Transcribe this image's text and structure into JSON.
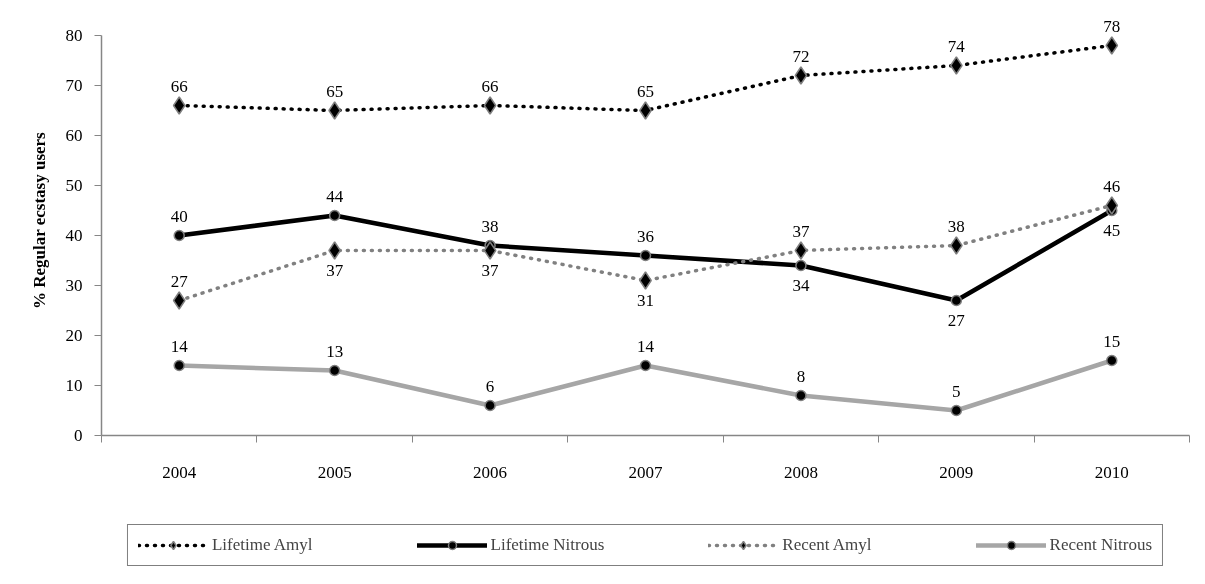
{
  "chart_data": {
    "type": "line",
    "ylabel": "% Regular ecstasy users",
    "categories": [
      "2004",
      "2005",
      "2006",
      "2007",
      "2008",
      "2009",
      "2010"
    ],
    "ylim": [
      0,
      80
    ],
    "yticks": [
      0,
      10,
      20,
      30,
      40,
      50,
      60,
      70,
      80
    ],
    "grid": false,
    "legend": "bottom",
    "data_labels": true,
    "series": [
      {
        "name": "Lifetime Amyl",
        "color": "#000000",
        "line_style": "dotted",
        "marker": "diamond",
        "colors": [
          "#000000",
          "#000000",
          "#000000",
          "#000000",
          "#000000",
          "#000000",
          "#000000"
        ],
        "values": [
          66,
          65,
          66,
          65,
          72,
          74,
          78
        ]
      },
      {
        "name": "Lifetime Nitrous",
        "color": "#000000",
        "line_style": "solid",
        "marker": "circle",
        "colors": [
          "#000000",
          "#000000",
          "#000000",
          "#000000",
          "#000000",
          "#000000",
          "#000000"
        ],
        "values": [
          40,
          44,
          38,
          36,
          34,
          27,
          45
        ]
      },
      {
        "name": "Recent Amyl",
        "color": "#808080",
        "line_style": "dotted",
        "marker": "diamond",
        "colors": [
          "#000000",
          "#000000",
          "#000000",
          "#000000",
          "#000000",
          "#000000",
          "#000000"
        ],
        "values": [
          27,
          37,
          37,
          31,
          37,
          38,
          46
        ]
      },
      {
        "name": "Recent Nitrous",
        "color": "#a6a6a6",
        "line_style": "solid",
        "marker": "circle",
        "colors": [
          "#000000",
          "#000000",
          "#000000",
          "#000000",
          "#000000",
          "#000000",
          "#000000"
        ],
        "values": [
          14,
          13,
          6,
          14,
          8,
          5,
          15
        ]
      }
    ]
  }
}
